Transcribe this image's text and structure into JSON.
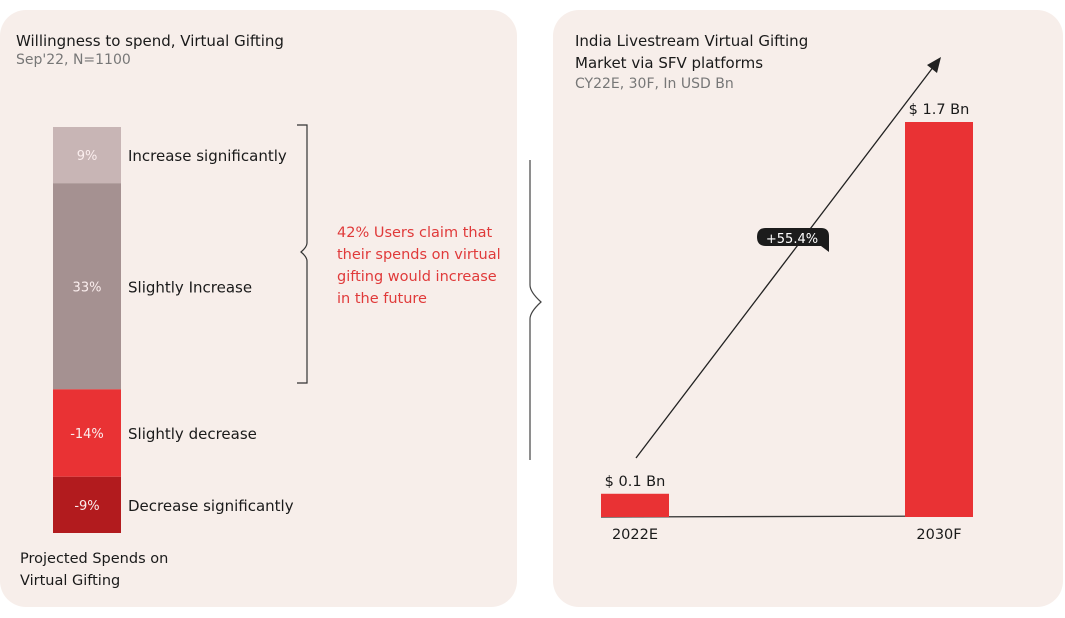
{
  "chart_data": [
    {
      "type": "bar",
      "stacked": true,
      "title": "Willingness to spend, Virtual Gifting",
      "subtitle": "Sep'22, N=1100",
      "xlabel": "Projected Spends on Virtual Gifting",
      "segments": [
        {
          "label": "Increase significantly",
          "value": 9,
          "display": "9%",
          "color": "#c8b5b5"
        },
        {
          "label": "Slightly Increase",
          "value": 33,
          "display": "33%",
          "color": "#a59191"
        },
        {
          "label": "Slightly decrease",
          "value": -14,
          "display": "-14%",
          "color": "#e93234"
        },
        {
          "label": "Decrease significantly",
          "value": -9,
          "display": "-9%",
          "color": "#b21b1e"
        }
      ],
      "annotation": "42% Users claim that their spends on virtual gifting  would increase in the future",
      "annotation_color": "#e03a3a"
    },
    {
      "type": "bar",
      "title": "India Livestream Virtual Gifting Market via SFV platforms",
      "subtitle": "CY22E, 30F, In USD Bn",
      "categories": [
        "2022E",
        "2030F"
      ],
      "values": [
        0.1,
        1.7
      ],
      "data_labels": [
        "$ 0.1 Bn",
        "$ 1.7 Bn"
      ],
      "color": "#e93234",
      "growth_label": "+55.4%",
      "ylim": [
        0,
        1.7
      ]
    }
  ]
}
